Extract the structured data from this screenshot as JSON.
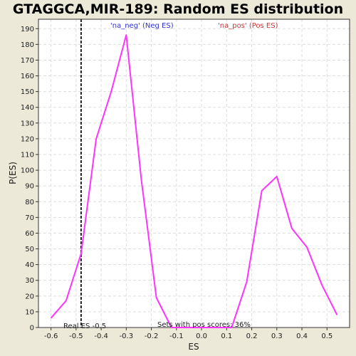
{
  "chart_data": {
    "type": "line",
    "title": "GTAGGCA,MIR-189: Random ES distribution",
    "xlabel": "ES",
    "ylabel": "P(ES)",
    "xlim": [
      -0.65,
      0.59
    ],
    "ylim": [
      0,
      196
    ],
    "xticks": [
      -0.6,
      -0.5,
      -0.4,
      -0.3,
      -0.2,
      -0.1,
      0.0,
      0.1,
      0.2,
      0.3,
      0.4,
      0.5
    ],
    "xtick_labels": [
      "-0.6",
      "-0.5",
      "-0.4",
      "-0.3",
      "-0.2",
      "-0.1",
      "0.0",
      "0.1",
      "0.2",
      "0.3",
      "0.4",
      "0.5"
    ],
    "yticks": [
      0,
      10,
      20,
      30,
      40,
      50,
      60,
      70,
      80,
      90,
      100,
      110,
      120,
      130,
      140,
      150,
      160,
      170,
      180,
      190
    ],
    "ytick_labels": [
      "0",
      "10",
      "20",
      "30",
      "40",
      "50",
      "60",
      "70",
      "80",
      "90",
      "100",
      "110",
      "120",
      "130",
      "140",
      "150",
      "160",
      "170",
      "180",
      "190"
    ],
    "grid": true,
    "line_color": "#FF33FF",
    "series": [
      {
        "x": [
          -0.6,
          -0.54,
          -0.48,
          -0.42,
          -0.36,
          -0.3,
          -0.24,
          -0.18,
          -0.12,
          -0.06,
          0.0,
          0.06,
          0.12,
          0.18,
          0.24,
          0.3,
          0.36,
          0.42,
          0.48,
          0.54
        ],
        "y": [
          6,
          17,
          47,
          120,
          150,
          186,
          94,
          19,
          0,
          0,
          0,
          0,
          0,
          29,
          87,
          96,
          63,
          51,
          27,
          8
        ]
      }
    ],
    "real_es": {
      "value": -0.48,
      "label": "Real ES -0.5"
    },
    "annotations": [
      {
        "text": "'na_neg' (Neg ES)",
        "color": "#3333CC"
      },
      {
        "text": "'na_pos' (Pos ES)",
        "color": "#CC3333"
      },
      {
        "text": "Sets with pos scores: 36%",
        "color": "#222222"
      }
    ]
  }
}
